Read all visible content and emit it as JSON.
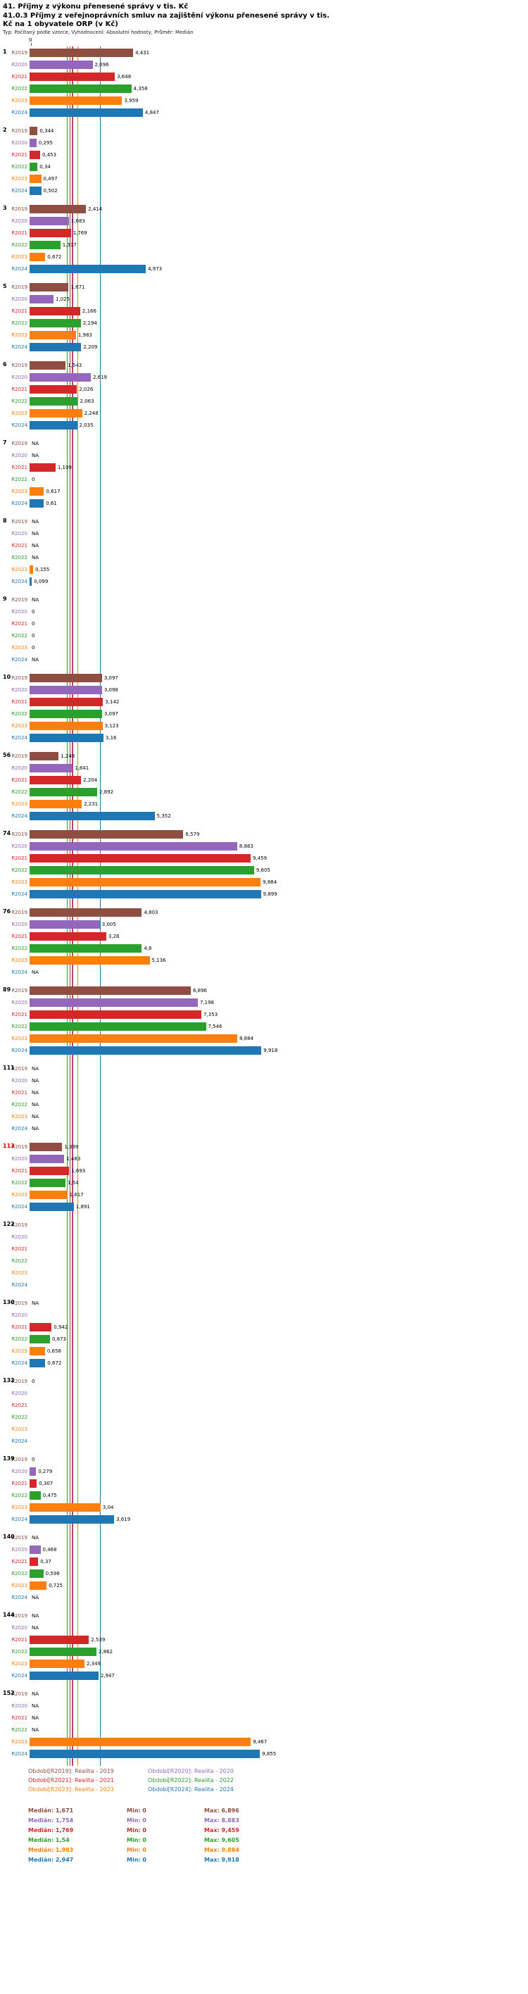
{
  "header": {
    "title1": "41. Příjmy z výkonu přenesené správy v tis. Kč",
    "title2": "41.0.3 Příjmy z veřejnoprávních smluv na zajištění výkonu přenesené správy v tis. Kč na 1 obyvatele ORP (v Kč)",
    "meta": "Typ: Počítaný podle vzorce, Vyhodnocení: Absolutní hodnoty, Průměr: Medián"
  },
  "axis": {
    "zero_label": "0"
  },
  "years": [
    {
      "label": "R2019",
      "color": "#8f4e41",
      "median": "1,671",
      "min": "0",
      "max": "6,896"
    },
    {
      "label": "R2020",
      "color": "#9467bd",
      "median": "1,754",
      "min": "0",
      "max": "8,883"
    },
    {
      "label": "R2021",
      "color": "#d62728",
      "median": "1,769",
      "min": "0",
      "max": "9,459"
    },
    {
      "label": "R2022",
      "color": "#2ca02c",
      "median": "1,54",
      "min": "0",
      "max": "9,605"
    },
    {
      "label": "R2023",
      "color": "#ff7f0e",
      "median": "1,983",
      "min": "0",
      "max": "9,884"
    },
    {
      "label": "R2024",
      "color": "#1f77b4",
      "median": "2,947",
      "min": "0",
      "max": "9,918"
    }
  ],
  "stats_captions": {
    "median": "Medián:",
    "min": "Min:",
    "max": "Max:"
  },
  "legend": {
    "items": [
      {
        "text": "Období[R2019]: Realita - 2019",
        "year": "R2019"
      },
      {
        "text": "Období[R2021]: Realita - 2021",
        "year": "R2021"
      },
      {
        "text": "Období[R2023]: Realita - 2023",
        "year": "R2023"
      },
      {
        "text": "Období[R2020]: Realita - 2020",
        "year": "R2020"
      },
      {
        "text": "Období[R2022]: Realita - 2022",
        "year": "R2022"
      },
      {
        "text": "Období[R2024]: Realita - 2024",
        "year": "R2024"
      }
    ]
  },
  "chart_data": {
    "type": "bar",
    "orientation": "horizontal",
    "value_format": "czech-decimal-comma; NA = no data; empty string = no label shown",
    "series_labels": [
      "R2019",
      "R2020",
      "R2021",
      "R2022",
      "R2023",
      "R2024"
    ],
    "x_axis": {
      "min": 0,
      "implied_max": 11,
      "shown_tick": "0"
    },
    "median_lines": {
      "R2019": 1.671,
      "R2020": 1.754,
      "R2021": 1.769,
      "R2022": 1.54,
      "R2023": 1.983,
      "R2024": 2.947
    },
    "groups": [
      {
        "id": "1",
        "values": [
          "4,431",
          "2,696",
          "3,648",
          "4,358",
          "3,959",
          "4,847"
        ]
      },
      {
        "id": "2",
        "values": [
          "0,344",
          "0,295",
          "0,453",
          "0,34",
          "0,497",
          "0,502"
        ]
      },
      {
        "id": "3",
        "values": [
          "2,414",
          "1,683",
          "1,769",
          "1,317",
          "0,672",
          "4,973"
        ]
      },
      {
        "id": "5",
        "values": [
          "1,671",
          "1,025",
          "2,166",
          "2,194",
          "1,983",
          "2,209"
        ]
      },
      {
        "id": "6",
        "values": [
          "1,543",
          "2,619",
          "2,026",
          "2,063",
          "2,248",
          "2,035"
        ]
      },
      {
        "id": "7",
        "values": [
          "NA",
          "NA",
          "1,109",
          "0",
          "0,617",
          "0,61"
        ]
      },
      {
        "id": "8",
        "values": [
          "NA",
          "NA",
          "NA",
          "NA",
          "0,155",
          "0,099"
        ]
      },
      {
        "id": "9",
        "values": [
          "NA",
          "0",
          "0",
          "0",
          "0",
          "NA"
        ]
      },
      {
        "id": "10",
        "values": [
          "3,097",
          "3,098",
          "3,142",
          "3,097",
          "3,123",
          "3,16"
        ]
      },
      {
        "id": "56",
        "values": [
          "1,246",
          "1,841",
          "2,204",
          "2,892",
          "2,231",
          "5,352"
        ]
      },
      {
        "id": "74",
        "values": [
          "6,579",
          "8,883",
          "9,459",
          "9,605",
          "9,884",
          "9,899"
        ]
      },
      {
        "id": "76",
        "values": [
          "4,803",
          "3,005",
          "3,28",
          "4,8",
          "5,136",
          "NA"
        ]
      },
      {
        "id": "89",
        "values": [
          "6,896",
          "7,198",
          "7,353",
          "7,546",
          "8,884",
          "9,918"
        ]
      },
      {
        "id": "111",
        "values": [
          "NA",
          "NA",
          "NA",
          "NA",
          "NA",
          "NA"
        ]
      },
      {
        "id": "113",
        "highlight": true,
        "values": [
          "1,399",
          "1,483",
          "1,693",
          "1,54",
          "1,617",
          "1,891"
        ]
      },
      {
        "id": "122",
        "values": [
          "",
          "",
          "",
          "",
          "",
          ""
        ]
      },
      {
        "id": "130",
        "values": [
          "NA",
          "",
          "0,942",
          "0,873",
          "0,658",
          "0,672"
        ]
      },
      {
        "id": "132",
        "values": [
          "0",
          "",
          "",
          "",
          "",
          ""
        ]
      },
      {
        "id": "139",
        "values": [
          "0",
          "0,279",
          "0,307",
          "0,475",
          "3,04",
          "3,619"
        ]
      },
      {
        "id": "140",
        "values": [
          "NA",
          "0,468",
          "0,37",
          "0,596",
          "0,725",
          "NA"
        ]
      },
      {
        "id": "144",
        "values": [
          "NA",
          "NA",
          "2,539",
          "2,862",
          "2,349",
          "2,947"
        ]
      },
      {
        "id": "152",
        "values": [
          "NA",
          "NA",
          "NA",
          "NA",
          "9,467",
          "9,855"
        ]
      }
    ]
  }
}
